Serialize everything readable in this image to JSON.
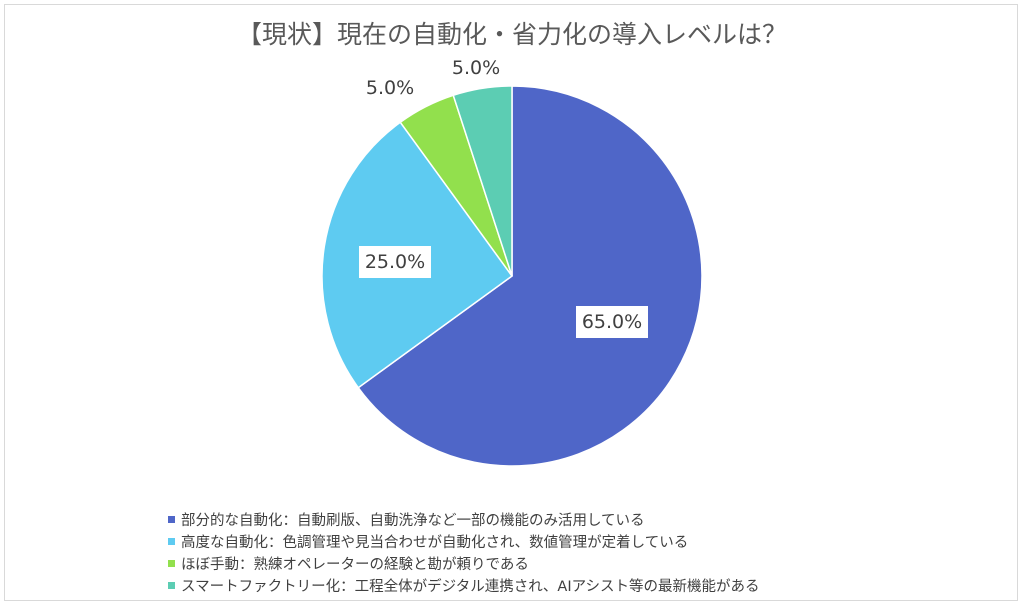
{
  "chart_data": {
    "type": "pie",
    "title": "【現状】現在の自動化・省力化の導入レベルは？",
    "categories": [
      "部分的な自動化：自動刷版、自動洗浄など一部の機能のみ活用している",
      "高度な自動化：色調管理や見当合わせが自動化され、数値管理が定着している",
      "ほぼ手動：熟練オペレーターの経験と勘が頼りである",
      "スマートファクトリー化：工程全体がデジタル連携され、AIアシスト等の最新機能がある"
    ],
    "values": [
      65.0,
      25.0,
      5.0,
      5.0
    ],
    "data_labels": [
      "65.0%",
      "25.0%",
      "5.0%",
      "5.0%"
    ],
    "colors": [
      "#4f66c8",
      "#5ecbf1",
      "#92e04d",
      "#5ccdb3"
    ],
    "legend_position": "bottom",
    "start_angle": "top",
    "direction": "clockwise"
  }
}
